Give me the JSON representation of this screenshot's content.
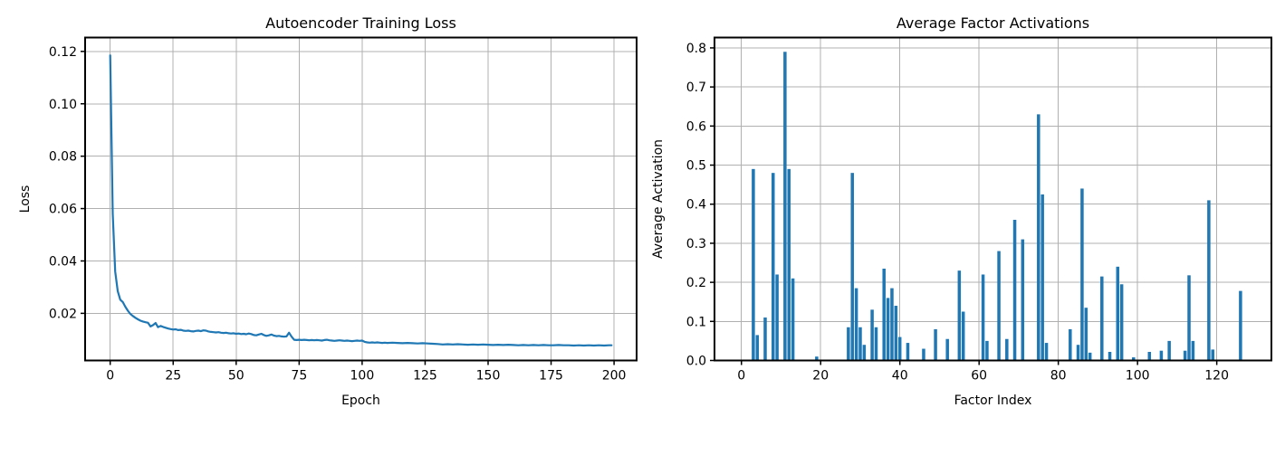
{
  "figure": {
    "background": "#ffffff"
  },
  "chart_data": [
    {
      "id": "training-loss",
      "type": "line",
      "title": "Autoencoder Training Loss",
      "xlabel": "Epoch",
      "ylabel": "Loss",
      "xlim": [
        -9.95,
        208.95
      ],
      "ylim": [
        0.002,
        0.1253
      ],
      "grid": true,
      "legend": "none",
      "line_color": "#1f77b4",
      "xticks": [
        0,
        25,
        50,
        75,
        100,
        125,
        150,
        175,
        200
      ],
      "xtick_labels": [
        "0",
        "25",
        "50",
        "75",
        "100",
        "125",
        "150",
        "175",
        "200"
      ],
      "yticks": [
        0.02,
        0.04,
        0.06,
        0.08,
        0.1,
        0.12
      ],
      "ytick_labels": [
        "0.02",
        "0.04",
        "0.06",
        "0.08",
        "0.10",
        "0.12"
      ],
      "points": [
        [
          0,
          0.1185
        ],
        [
          1,
          0.058
        ],
        [
          2,
          0.036
        ],
        [
          3,
          0.0285
        ],
        [
          4,
          0.0252
        ],
        [
          5,
          0.0243
        ],
        [
          6,
          0.0225
        ],
        [
          7,
          0.021
        ],
        [
          8,
          0.0198
        ],
        [
          9,
          0.019
        ],
        [
          10,
          0.0183
        ],
        [
          11,
          0.0177
        ],
        [
          12,
          0.0172
        ],
        [
          13,
          0.0169
        ],
        [
          14,
          0.0166
        ],
        [
          15,
          0.0164
        ],
        [
          16,
          0.015
        ],
        [
          17,
          0.0155
        ],
        [
          18,
          0.0163
        ],
        [
          19,
          0.0147
        ],
        [
          20,
          0.0152
        ],
        [
          21,
          0.0148
        ],
        [
          22,
          0.0145
        ],
        [
          23,
          0.0142
        ],
        [
          24,
          0.014
        ],
        [
          25,
          0.0138
        ],
        [
          26,
          0.0139
        ],
        [
          27,
          0.0136
        ],
        [
          28,
          0.0137
        ],
        [
          29,
          0.0134
        ],
        [
          30,
          0.0133
        ],
        [
          31,
          0.0134
        ],
        [
          32,
          0.0132
        ],
        [
          33,
          0.0131
        ],
        [
          34,
          0.0133
        ],
        [
          35,
          0.0134
        ],
        [
          36,
          0.0132
        ],
        [
          37,
          0.0135
        ],
        [
          38,
          0.0134
        ],
        [
          39,
          0.0131
        ],
        [
          40,
          0.0129
        ],
        [
          41,
          0.0128
        ],
        [
          42,
          0.0127
        ],
        [
          43,
          0.0128
        ],
        [
          44,
          0.0126
        ],
        [
          45,
          0.0125
        ],
        [
          46,
          0.0126
        ],
        [
          47,
          0.0124
        ],
        [
          48,
          0.0123
        ],
        [
          49,
          0.0124
        ],
        [
          50,
          0.0122
        ],
        [
          51,
          0.0123
        ],
        [
          52,
          0.0121
        ],
        [
          53,
          0.0122
        ],
        [
          54,
          0.012
        ],
        [
          55,
          0.0123
        ],
        [
          56,
          0.0121
        ],
        [
          57,
          0.0117
        ],
        [
          58,
          0.0116
        ],
        [
          59,
          0.0119
        ],
        [
          60,
          0.0122
        ],
        [
          61,
          0.0117
        ],
        [
          62,
          0.0114
        ],
        [
          63,
          0.0116
        ],
        [
          64,
          0.0119
        ],
        [
          65,
          0.0115
        ],
        [
          66,
          0.0113
        ],
        [
          67,
          0.0114
        ],
        [
          68,
          0.0112
        ],
        [
          69,
          0.0111
        ],
        [
          70,
          0.0112
        ],
        [
          71,
          0.0126
        ],
        [
          72,
          0.0111
        ],
        [
          73,
          0.0099
        ],
        [
          74,
          0.0098
        ],
        [
          75,
          0.0099
        ],
        [
          76,
          0.0098
        ],
        [
          77,
          0.0099
        ],
        [
          78,
          0.0098
        ],
        [
          79,
          0.0097
        ],
        [
          80,
          0.0098
        ],
        [
          81,
          0.0097
        ],
        [
          82,
          0.0098
        ],
        [
          83,
          0.0097
        ],
        [
          84,
          0.0096
        ],
        [
          85,
          0.0098
        ],
        [
          86,
          0.0099
        ],
        [
          87,
          0.0097
        ],
        [
          88,
          0.0096
        ],
        [
          89,
          0.0095
        ],
        [
          90,
          0.0096
        ],
        [
          91,
          0.0097
        ],
        [
          92,
          0.0096
        ],
        [
          93,
          0.0095
        ],
        [
          94,
          0.0096
        ],
        [
          95,
          0.0095
        ],
        [
          96,
          0.0094
        ],
        [
          97,
          0.0095
        ],
        [
          98,
          0.0096
        ],
        [
          99,
          0.0095
        ],
        [
          100,
          0.0096
        ],
        [
          101,
          0.0091
        ],
        [
          102,
          0.0089
        ],
        [
          103,
          0.0088
        ],
        [
          104,
          0.0089
        ],
        [
          105,
          0.0088
        ],
        [
          106,
          0.0089
        ],
        [
          107,
          0.0088
        ],
        [
          108,
          0.0087
        ],
        [
          109,
          0.0088
        ],
        [
          110,
          0.0087
        ],
        [
          112,
          0.0088
        ],
        [
          114,
          0.0087
        ],
        [
          116,
          0.0086
        ],
        [
          118,
          0.0087
        ],
        [
          120,
          0.0086
        ],
        [
          122,
          0.0085
        ],
        [
          124,
          0.0086
        ],
        [
          126,
          0.0085
        ],
        [
          128,
          0.0084
        ],
        [
          130,
          0.0083
        ],
        [
          132,
          0.0081
        ],
        [
          134,
          0.0082
        ],
        [
          136,
          0.0081
        ],
        [
          138,
          0.0082
        ],
        [
          140,
          0.0081
        ],
        [
          142,
          0.008
        ],
        [
          144,
          0.0081
        ],
        [
          146,
          0.008
        ],
        [
          148,
          0.0081
        ],
        [
          150,
          0.008
        ],
        [
          152,
          0.0079
        ],
        [
          154,
          0.008
        ],
        [
          156,
          0.0079
        ],
        [
          158,
          0.008
        ],
        [
          160,
          0.0079
        ],
        [
          162,
          0.0078
        ],
        [
          164,
          0.0079
        ],
        [
          166,
          0.0078
        ],
        [
          168,
          0.0079
        ],
        [
          170,
          0.0078
        ],
        [
          172,
          0.0079
        ],
        [
          174,
          0.0078
        ],
        [
          176,
          0.0078
        ],
        [
          178,
          0.0079
        ],
        [
          180,
          0.0078
        ],
        [
          182,
          0.0078
        ],
        [
          184,
          0.0077
        ],
        [
          186,
          0.0078
        ],
        [
          188,
          0.0077
        ],
        [
          190,
          0.0078
        ],
        [
          192,
          0.0077
        ],
        [
          194,
          0.0078
        ],
        [
          196,
          0.0077
        ],
        [
          198,
          0.0078
        ],
        [
          199,
          0.0078
        ]
      ]
    },
    {
      "id": "factor-activations",
      "type": "bar",
      "title": "Average Factor Activations",
      "xlabel": "Factor Index",
      "ylabel": "Average Activation",
      "n_factors": 128,
      "bar_width": 0.8,
      "xlim": [
        -6.8,
        133.8
      ],
      "ylim": [
        0,
        0.8265
      ],
      "grid": true,
      "legend": "none",
      "bar_color": "#1f77b4",
      "xticks": [
        0,
        20,
        40,
        60,
        80,
        100,
        120
      ],
      "xtick_labels": [
        "0",
        "20",
        "40",
        "60",
        "80",
        "100",
        "120"
      ],
      "yticks": [
        0.0,
        0.1,
        0.2,
        0.3,
        0.4,
        0.5,
        0.6,
        0.7,
        0.8
      ],
      "ytick_labels": [
        "0.0",
        "0.1",
        "0.2",
        "0.3",
        "0.4",
        "0.5",
        "0.6",
        "0.7",
        "0.8"
      ],
      "bars": [
        [
          3,
          0.49
        ],
        [
          4,
          0.065
        ],
        [
          6,
          0.11
        ],
        [
          8,
          0.48
        ],
        [
          9,
          0.22
        ],
        [
          11,
          0.79
        ],
        [
          12,
          0.49
        ],
        [
          13,
          0.21
        ],
        [
          19,
          0.01
        ],
        [
          27,
          0.085
        ],
        [
          28,
          0.48
        ],
        [
          29,
          0.185
        ],
        [
          30,
          0.085
        ],
        [
          31,
          0.04
        ],
        [
          33,
          0.13
        ],
        [
          34,
          0.085
        ],
        [
          36,
          0.235
        ],
        [
          37,
          0.16
        ],
        [
          38,
          0.185
        ],
        [
          39,
          0.14
        ],
        [
          40,
          0.06
        ],
        [
          42,
          0.045
        ],
        [
          46,
          0.03
        ],
        [
          49,
          0.08
        ],
        [
          52,
          0.055
        ],
        [
          55,
          0.23
        ],
        [
          56,
          0.125
        ],
        [
          61,
          0.22
        ],
        [
          62,
          0.05
        ],
        [
          65,
          0.28
        ],
        [
          67,
          0.055
        ],
        [
          69,
          0.36
        ],
        [
          71,
          0.31
        ],
        [
          75,
          0.63
        ],
        [
          76,
          0.425
        ],
        [
          77,
          0.045
        ],
        [
          83,
          0.08
        ],
        [
          85,
          0.04
        ],
        [
          86,
          0.44
        ],
        [
          87,
          0.135
        ],
        [
          88,
          0.02
        ],
        [
          91,
          0.215
        ],
        [
          93,
          0.022
        ],
        [
          95,
          0.24
        ],
        [
          96,
          0.195
        ],
        [
          99,
          0.008
        ],
        [
          103,
          0.022
        ],
        [
          106,
          0.025
        ],
        [
          108,
          0.05
        ],
        [
          112,
          0.025
        ],
        [
          113,
          0.218
        ],
        [
          114,
          0.05
        ],
        [
          118,
          0.41
        ],
        [
          119,
          0.028
        ],
        [
          126,
          0.178
        ]
      ]
    }
  ]
}
